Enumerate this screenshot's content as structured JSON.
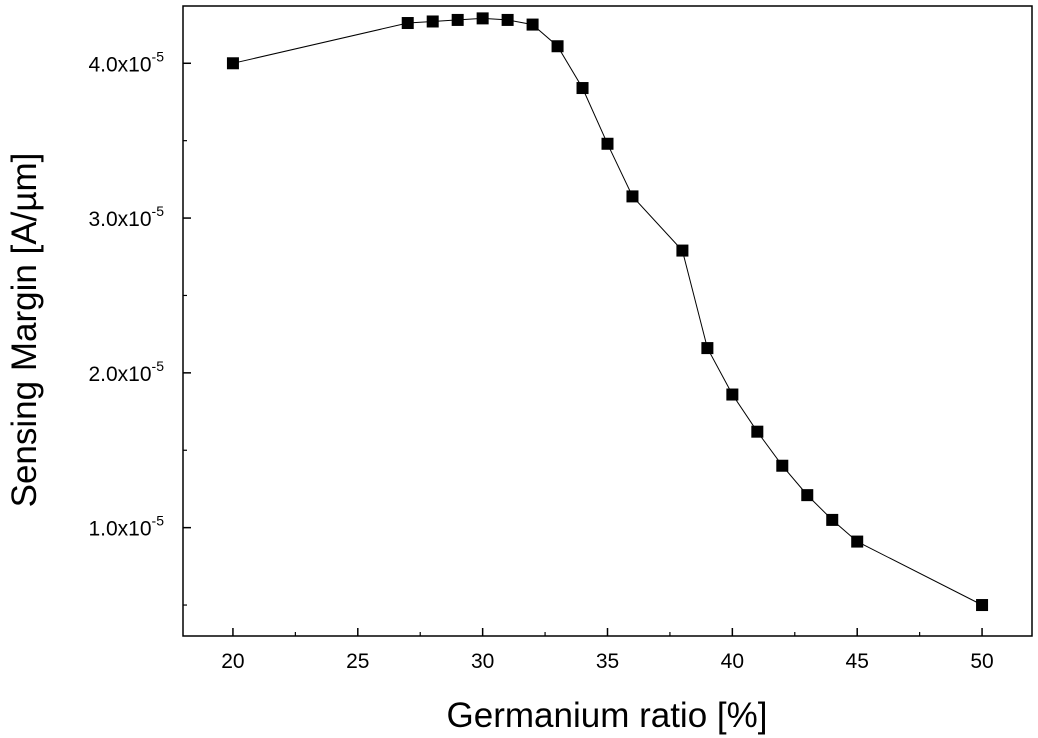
{
  "chart_data": {
    "type": "line",
    "title": "",
    "xlabel": "Germanium ratio [%]",
    "ylabel": "Sensing Margin [A/µm]",
    "xlim": [
      18,
      52
    ],
    "ylim": [
      3e-06,
      4.37e-05
    ],
    "grid": false,
    "legend": "none",
    "x_ticks": [
      {
        "value": 20,
        "label": "20"
      },
      {
        "value": 25,
        "label": "25"
      },
      {
        "value": 30,
        "label": "30"
      },
      {
        "value": 35,
        "label": "35"
      },
      {
        "value": 40,
        "label": "40"
      },
      {
        "value": 45,
        "label": "45"
      },
      {
        "value": 50,
        "label": "50"
      }
    ],
    "y_ticks": [
      {
        "value": 1e-05,
        "mantissa": "1.0x10",
        "exponent": "-5"
      },
      {
        "value": 2e-05,
        "mantissa": "2.0x10",
        "exponent": "-5"
      },
      {
        "value": 3e-05,
        "mantissa": "3.0x10",
        "exponent": "-5"
      },
      {
        "value": 4e-05,
        "mantissa": "4.0x10",
        "exponent": "-5"
      }
    ],
    "series": [
      {
        "marker": "square",
        "color": "#000000",
        "x": [
          20,
          27,
          28,
          29,
          30,
          31,
          32,
          33,
          34,
          35,
          36,
          38,
          39,
          40,
          41,
          42,
          43,
          44,
          45,
          50
        ],
        "y": [
          4e-05,
          4.26e-05,
          4.27e-05,
          4.28e-05,
          4.29e-05,
          4.28e-05,
          4.25e-05,
          4.11e-05,
          3.84e-05,
          3.48e-05,
          3.14e-05,
          2.79e-05,
          2.16e-05,
          1.86e-05,
          1.62e-05,
          1.4e-05,
          1.21e-05,
          1.05e-05,
          9.1e-06,
          5e-06
        ]
      }
    ]
  }
}
